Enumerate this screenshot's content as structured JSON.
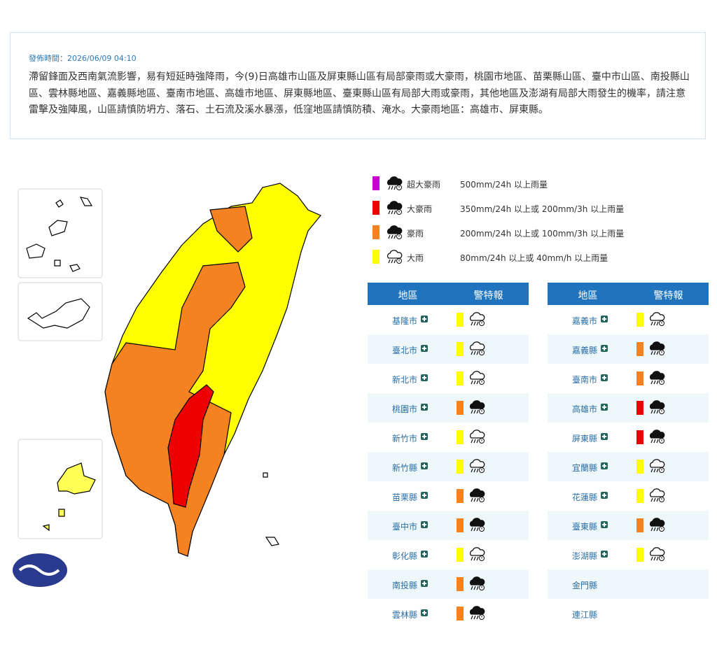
{
  "header": {
    "time": "發佈時間：2026/06/09 04:10",
    "text": "滯留鋒面及西南氣流影響，易有短延時強降雨，今(9)日高雄市山區及屏東縣山區有局部豪雨或大豪雨，桃園市地區、苗栗縣山區、臺中市山區、南投縣山區、雲林縣地區、嘉義縣地區、臺南市地區、高雄市地區、屏東縣地區、臺東縣山區有局部大雨或豪雨，其他地區及澎湖有局部大雨發生的機率，請注意雷擊及強陣風，山區請慎防坍方、落石、土石流及溪水暴漲，低窪地區請慎防積、淹水。大豪雨地區：高雄市、屏東縣。"
  },
  "legend": [
    {
      "name": "超大豪雨",
      "desc": "500mm/24h 以上雨量",
      "color": "#cc00cc",
      "icon": "filled"
    },
    {
      "name": "大豪雨",
      "desc": "350mm/24h 以上或 200mm/3h 以上雨量",
      "color": "#ee0000",
      "icon": "filled"
    },
    {
      "name": "豪雨",
      "desc": "200mm/24h 以上或 100mm/3h 以上雨量",
      "color": "#f58220",
      "icon": "filled"
    },
    {
      "name": "大雨",
      "desc": "80mm/24h 以上或 40mm/h 以上雨量",
      "color": "#ffff00",
      "icon": "outline"
    }
  ],
  "tables": [
    {
      "headers": [
        "地區",
        "警特報"
      ],
      "rows": [
        {
          "name": "基隆市",
          "color": "#ffff00"
        },
        {
          "name": "臺北市",
          "color": "#ffff00"
        },
        {
          "name": "新北市",
          "color": "#ffff00"
        },
        {
          "name": "桃園市",
          "color": "#f58220"
        },
        {
          "name": "新竹市",
          "color": "#ffff00"
        },
        {
          "name": "新竹縣",
          "color": "#ffff00"
        },
        {
          "name": "苗栗縣",
          "color": "#f58220"
        },
        {
          "name": "臺中市",
          "color": "#f58220"
        },
        {
          "name": "彰化縣",
          "color": "#ffff00"
        },
        {
          "name": "南投縣",
          "color": "#f58220"
        },
        {
          "name": "雲林縣",
          "color": "#f58220"
        }
      ]
    },
    {
      "headers": [
        "地區",
        "警特報"
      ],
      "rows": [
        {
          "name": "嘉義市",
          "color": "#ffff00"
        },
        {
          "name": "嘉義縣",
          "color": "#f58220"
        },
        {
          "name": "臺南市",
          "color": "#f58220"
        },
        {
          "name": "高雄市",
          "color": "#ee0000"
        },
        {
          "name": "屏東縣",
          "color": "#ee0000"
        },
        {
          "name": "宜蘭縣",
          "color": "#ffff00"
        },
        {
          "name": "花蓮縣",
          "color": "#ffff00"
        },
        {
          "name": "臺東縣",
          "color": "#f58220"
        },
        {
          "name": "澎湖縣",
          "color": "#ffff00"
        },
        {
          "name": "金門縣",
          "color": null
        },
        {
          "name": "連江縣",
          "color": null
        }
      ]
    }
  ]
}
